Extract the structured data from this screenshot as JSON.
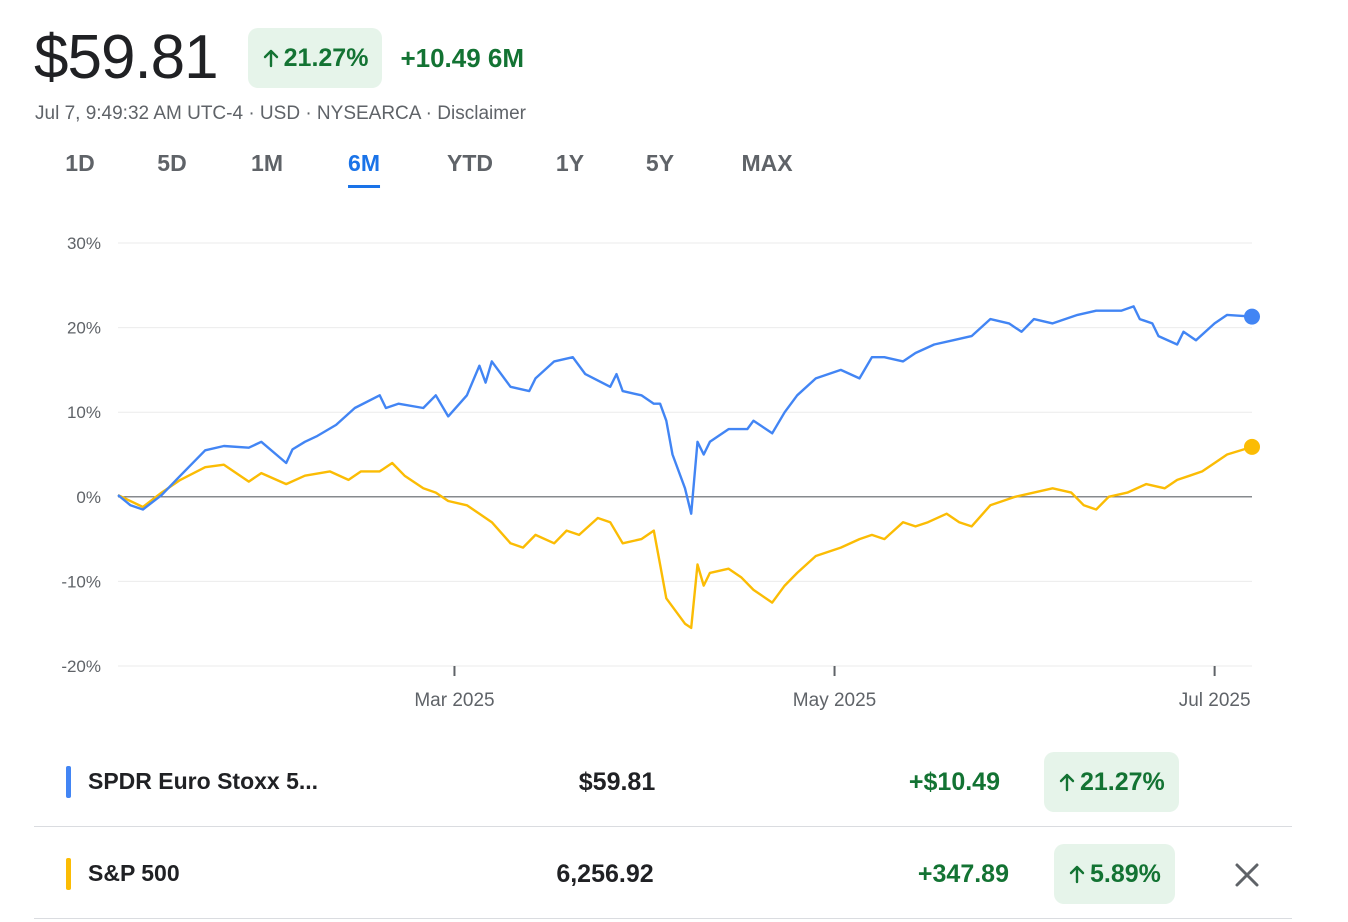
{
  "header": {
    "price": "$59.81",
    "percent_change": "21.27%",
    "change_text": "+10.49 6M",
    "meta_text": "Jul 7, 9:49:32 AM UTC-4 · USD · NYSEARCA · ",
    "disclaimer": "Disclaimer"
  },
  "tabs": [
    {
      "label": "1D"
    },
    {
      "label": "5D"
    },
    {
      "label": "1M"
    },
    {
      "label": "6M"
    },
    {
      "label": "YTD"
    },
    {
      "label": "1Y"
    },
    {
      "label": "5Y"
    },
    {
      "label": "MAX"
    }
  ],
  "active_tab": "6M",
  "colors": {
    "accent": "#1a73e8",
    "positive": "#137333",
    "positive_bg": "#e6f4ea",
    "series_primary": "#4285f4",
    "series_compare": "#fbbc04"
  },
  "rows": [
    {
      "name": "SPDR Euro Stoxx 5...",
      "price": "$59.81",
      "change": "+$10.49",
      "percent": "21.27%",
      "color": "#4285f4"
    },
    {
      "name": "S&P 500",
      "price": "6,256.92",
      "change": "+347.89",
      "percent": "5.89%",
      "color": "#fbbc04"
    }
  ],
  "chart_data": {
    "type": "line",
    "y_tick_labels": [
      "30%",
      "20%",
      "10%",
      "0%",
      "-10%",
      "-20%"
    ],
    "ylim": [
      -20,
      30
    ],
    "x_tick_labels": [
      "Mar 2025",
      "May 2025",
      "Jul 2025"
    ],
    "x_ticks": [
      "2025-03-01",
      "2025-05-01",
      "2025-07-01"
    ],
    "xlim": [
      "2025-01-06",
      "2025-07-07"
    ],
    "grid": true,
    "series": [
      {
        "name": "SPDR Euro Stoxx 5...",
        "color": "#4285f4",
        "points": [
          [
            "2025-01-06",
            0.2
          ],
          [
            "2025-01-08",
            -1.0
          ],
          [
            "2025-01-10",
            -1.5
          ],
          [
            "2025-01-13",
            0.2
          ],
          [
            "2025-01-16",
            2.5
          ],
          [
            "2025-01-20",
            5.5
          ],
          [
            "2025-01-23",
            6.0
          ],
          [
            "2025-01-27",
            5.8
          ],
          [
            "2025-01-29",
            6.5
          ],
          [
            "2025-02-02",
            4.0
          ],
          [
            "2025-02-03",
            5.6
          ],
          [
            "2025-02-05",
            6.5
          ],
          [
            "2025-02-07",
            7.2
          ],
          [
            "2025-02-10",
            8.5
          ],
          [
            "2025-02-13",
            10.5
          ],
          [
            "2025-02-17",
            12.0
          ],
          [
            "2025-02-18",
            10.5
          ],
          [
            "2025-02-20",
            11.0
          ],
          [
            "2025-02-24",
            10.5
          ],
          [
            "2025-02-26",
            12.0
          ],
          [
            "2025-02-28",
            9.5
          ],
          [
            "2025-03-03",
            12.0
          ],
          [
            "2025-03-05",
            15.5
          ],
          [
            "2025-03-06",
            13.5
          ],
          [
            "2025-03-07",
            16.0
          ],
          [
            "2025-03-10",
            13.0
          ],
          [
            "2025-03-13",
            12.5
          ],
          [
            "2025-03-14",
            14.0
          ],
          [
            "2025-03-17",
            16.0
          ],
          [
            "2025-03-20",
            16.5
          ],
          [
            "2025-03-22",
            14.5
          ],
          [
            "2025-03-26",
            13.0
          ],
          [
            "2025-03-27",
            14.5
          ],
          [
            "2025-03-28",
            12.5
          ],
          [
            "2025-03-31",
            12.0
          ],
          [
            "2025-04-02",
            11.0
          ],
          [
            "2025-04-03",
            11.0
          ],
          [
            "2025-04-04",
            9.0
          ],
          [
            "2025-04-05",
            5.0
          ],
          [
            "2025-04-07",
            1.0
          ],
          [
            "2025-04-08",
            -2.0
          ],
          [
            "2025-04-09",
            6.5
          ],
          [
            "2025-04-10",
            5.0
          ],
          [
            "2025-04-11",
            6.5
          ],
          [
            "2025-04-14",
            8.0
          ],
          [
            "2025-04-17",
            8.0
          ],
          [
            "2025-04-18",
            9.0
          ],
          [
            "2025-04-21",
            7.5
          ],
          [
            "2025-04-23",
            10.0
          ],
          [
            "2025-04-25",
            12.0
          ],
          [
            "2025-04-28",
            14.0
          ],
          [
            "2025-05-02",
            15.0
          ],
          [
            "2025-05-05",
            14.0
          ],
          [
            "2025-05-07",
            16.5
          ],
          [
            "2025-05-09",
            16.5
          ],
          [
            "2025-05-12",
            16.0
          ],
          [
            "2025-05-14",
            17.0
          ],
          [
            "2025-05-17",
            18.0
          ],
          [
            "2025-05-20",
            18.5
          ],
          [
            "2025-05-23",
            19.0
          ],
          [
            "2025-05-26",
            21.0
          ],
          [
            "2025-05-29",
            20.5
          ],
          [
            "2025-05-31",
            19.5
          ],
          [
            "2025-06-02",
            21.0
          ],
          [
            "2025-06-05",
            20.5
          ],
          [
            "2025-06-09",
            21.5
          ],
          [
            "2025-06-12",
            22.0
          ],
          [
            "2025-06-16",
            22.0
          ],
          [
            "2025-06-18",
            22.5
          ],
          [
            "2025-06-19",
            21.0
          ],
          [
            "2025-06-21",
            20.5
          ],
          [
            "2025-06-22",
            19.0
          ],
          [
            "2025-06-25",
            18.0
          ],
          [
            "2025-06-26",
            19.5
          ],
          [
            "2025-06-28",
            18.5
          ],
          [
            "2025-07-01",
            20.5
          ],
          [
            "2025-07-03",
            21.5
          ],
          [
            "2025-07-07",
            21.3
          ]
        ]
      },
      {
        "name": "S&P 500",
        "color": "#fbbc04",
        "points": [
          [
            "2025-01-06",
            0.2
          ],
          [
            "2025-01-10",
            -1.2
          ],
          [
            "2025-01-13",
            0.5
          ],
          [
            "2025-01-16",
            2.0
          ],
          [
            "2025-01-20",
            3.5
          ],
          [
            "2025-01-23",
            3.8
          ],
          [
            "2025-01-27",
            1.8
          ],
          [
            "2025-01-29",
            2.8
          ],
          [
            "2025-02-02",
            1.5
          ],
          [
            "2025-02-05",
            2.5
          ],
          [
            "2025-02-09",
            3.0
          ],
          [
            "2025-02-12",
            2.0
          ],
          [
            "2025-02-14",
            3.0
          ],
          [
            "2025-02-17",
            3.0
          ],
          [
            "2025-02-19",
            4.0
          ],
          [
            "2025-02-21",
            2.5
          ],
          [
            "2025-02-24",
            1.0
          ],
          [
            "2025-02-26",
            0.5
          ],
          [
            "2025-02-28",
            -0.5
          ],
          [
            "2025-03-03",
            -1.0
          ],
          [
            "2025-03-05",
            -2.0
          ],
          [
            "2025-03-07",
            -3.0
          ],
          [
            "2025-03-10",
            -5.5
          ],
          [
            "2025-03-12",
            -6.0
          ],
          [
            "2025-03-14",
            -4.5
          ],
          [
            "2025-03-17",
            -5.5
          ],
          [
            "2025-03-19",
            -4.0
          ],
          [
            "2025-03-21",
            -4.5
          ],
          [
            "2025-03-24",
            -2.5
          ],
          [
            "2025-03-26",
            -3.0
          ],
          [
            "2025-03-28",
            -5.5
          ],
          [
            "2025-03-31",
            -5.0
          ],
          [
            "2025-04-02",
            -4.0
          ],
          [
            "2025-04-03",
            -8.0
          ],
          [
            "2025-04-04",
            -12.0
          ],
          [
            "2025-04-07",
            -15.0
          ],
          [
            "2025-04-08",
            -15.5
          ],
          [
            "2025-04-09",
            -8.0
          ],
          [
            "2025-04-10",
            -10.5
          ],
          [
            "2025-04-11",
            -9.0
          ],
          [
            "2025-04-14",
            -8.5
          ],
          [
            "2025-04-16",
            -9.5
          ],
          [
            "2025-04-18",
            -11.0
          ],
          [
            "2025-04-21",
            -12.5
          ],
          [
            "2025-04-23",
            -10.5
          ],
          [
            "2025-04-25",
            -9.0
          ],
          [
            "2025-04-28",
            -7.0
          ],
          [
            "2025-05-02",
            -6.0
          ],
          [
            "2025-05-05",
            -5.0
          ],
          [
            "2025-05-07",
            -4.5
          ],
          [
            "2025-05-09",
            -5.0
          ],
          [
            "2025-05-12",
            -3.0
          ],
          [
            "2025-05-14",
            -3.5
          ],
          [
            "2025-05-16",
            -3.0
          ],
          [
            "2025-05-19",
            -2.0
          ],
          [
            "2025-05-21",
            -3.0
          ],
          [
            "2025-05-23",
            -3.5
          ],
          [
            "2025-05-26",
            -1.0
          ],
          [
            "2025-05-28",
            -0.5
          ],
          [
            "2025-05-30",
            0.0
          ],
          [
            "2025-06-02",
            0.5
          ],
          [
            "2025-06-05",
            1.0
          ],
          [
            "2025-06-08",
            0.5
          ],
          [
            "2025-06-10",
            -1.0
          ],
          [
            "2025-06-12",
            -1.5
          ],
          [
            "2025-06-14",
            0.0
          ],
          [
            "2025-06-17",
            0.5
          ],
          [
            "2025-06-20",
            1.5
          ],
          [
            "2025-06-23",
            1.0
          ],
          [
            "2025-06-25",
            2.0
          ],
          [
            "2025-06-27",
            2.5
          ],
          [
            "2025-06-29",
            3.0
          ],
          [
            "2025-07-01",
            4.0
          ],
          [
            "2025-07-03",
            5.0
          ],
          [
            "2025-07-07",
            5.9
          ]
        ]
      }
    ]
  }
}
